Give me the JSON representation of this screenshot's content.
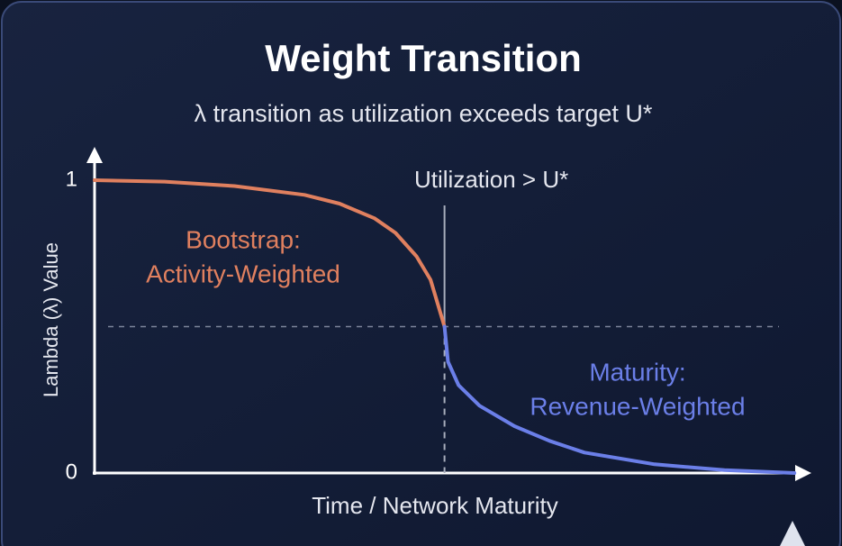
{
  "chart_data": {
    "type": "line",
    "title": "Weight Transition",
    "subtitle": "λ transition as utilization exceeds target U*",
    "y_label": "Lambda (λ) Value",
    "x_label": "Time / Network Maturity",
    "xlim": [
      0,
      10.1
    ],
    "ylim": [
      0,
      1.08
    ],
    "yticks": [
      0,
      1
    ],
    "threshold": {
      "x": 5,
      "label": "Utilization > U*"
    },
    "midline_y": 0.5,
    "series": [
      {
        "label": [
          "Bootstrap:",
          "Activity-Weighted"
        ],
        "color": "#e0805f",
        "x": [
          0,
          1,
          2,
          3,
          3.5,
          4,
          4.3,
          4.6,
          4.8,
          5
        ],
        "values": [
          1,
          0.995,
          0.98,
          0.95,
          0.92,
          0.87,
          0.82,
          0.74,
          0.66,
          0.5
        ]
      },
      {
        "label": [
          "Maturity:",
          "Revenue-Weighted"
        ],
        "color": "#6b7fe8",
        "x": [
          5,
          5.05,
          5.2,
          5.5,
          6,
          6.5,
          7,
          8,
          9,
          10
        ],
        "values": [
          0.5,
          0.38,
          0.3,
          0.23,
          0.16,
          0.11,
          0.07,
          0.03,
          0.01,
          0
        ]
      }
    ]
  }
}
